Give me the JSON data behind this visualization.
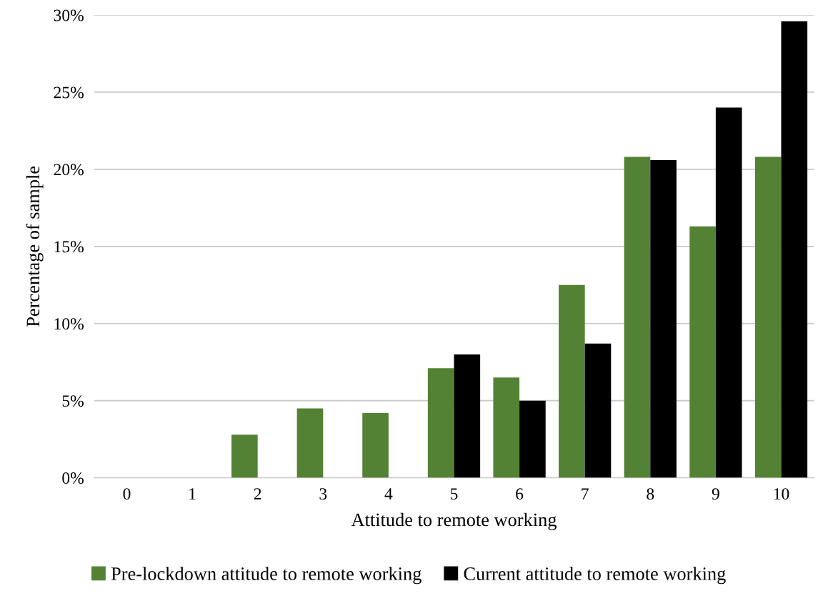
{
  "chart_data": {
    "type": "bar",
    "xlabel": "Attitude to remote working",
    "ylabel": "Percentage of sample",
    "categories": [
      "0",
      "1",
      "2",
      "3",
      "4",
      "5",
      "6",
      "7",
      "8",
      "9",
      "10"
    ],
    "series": [
      {
        "name": "Pre-lockdown attitude to remote working",
        "color": "#548235",
        "values": [
          0,
          0,
          2.8,
          4.5,
          4.2,
          7.1,
          6.5,
          12.5,
          20.8,
          16.3,
          20.8
        ]
      },
      {
        "name": "Current attitude to remote working",
        "color": "#000000",
        "values": [
          0,
          0,
          0,
          0,
          0,
          8.0,
          5.0,
          8.7,
          20.6,
          24.0,
          29.6
        ]
      }
    ],
    "ylim": [
      0,
      30
    ],
    "yticks": [
      {
        "value": 0,
        "label": "0%"
      },
      {
        "value": 5,
        "label": "5%"
      },
      {
        "value": 10,
        "label": "10%"
      },
      {
        "value": 15,
        "label": "15%"
      },
      {
        "value": 20,
        "label": "20%"
      },
      {
        "value": 25,
        "label": "25%"
      },
      {
        "value": 30,
        "label": "30%"
      }
    ],
    "grid": "y",
    "legend": "bottom"
  }
}
